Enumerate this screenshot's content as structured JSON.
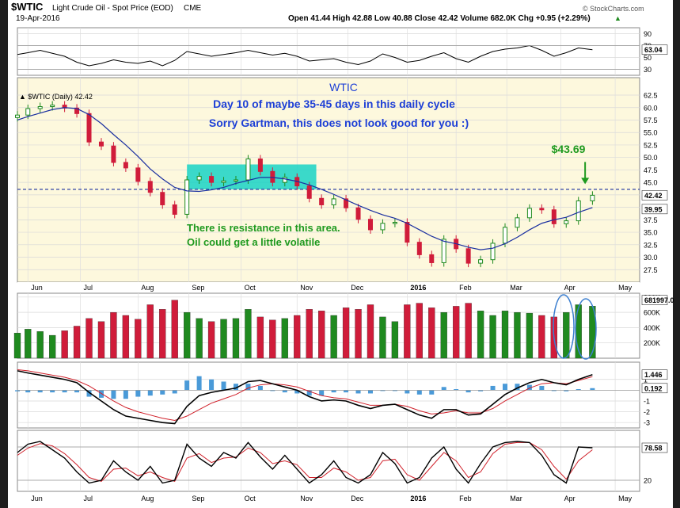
{
  "header": {
    "symbol": "$WTIC",
    "name": "Light Crude Oil - Spot Price (EOD)",
    "exchange": "CME",
    "date": "19-Apr-2016",
    "stats": "Open 41.44  High 42.88  Low 40.88  Close 42.42  Volume 682.0K  Chg +0.95 (+2.29%)",
    "stats_arrow": "▲",
    "brand": "© StockCharts.com"
  },
  "colors": {
    "up": "#1f8a1f",
    "down": "#d01c3a",
    "ma": "#1a2fa0",
    "signal": "#d0202a",
    "highlight": "#19d3c5",
    "annotation_blue": "#1d3fd6",
    "annotation_green": "#1f9a1f",
    "cycle_circle": "#3c7fd0"
  },
  "chart_data": {
    "type": "line",
    "x": [
      "2015-05-26",
      "2015-06-01",
      "2015-06-08",
      "2015-06-15",
      "2015-06-22",
      "2015-06-29",
      "2015-07-06",
      "2015-07-13",
      "2015-07-20",
      "2015-07-27",
      "2015-08-03",
      "2015-08-10",
      "2015-08-17",
      "2015-08-24",
      "2015-08-31",
      "2015-09-07",
      "2015-09-14",
      "2015-09-21",
      "2015-09-28",
      "2015-10-05",
      "2015-10-12",
      "2015-10-19",
      "2015-10-26",
      "2015-11-02",
      "2015-11-09",
      "2015-11-16",
      "2015-11-23",
      "2015-11-30",
      "2015-12-07",
      "2015-12-14",
      "2015-12-21",
      "2015-12-28",
      "2016-01-04",
      "2016-01-11",
      "2016-01-18",
      "2016-01-25",
      "2016-02-01",
      "2016-02-08",
      "2016-02-15",
      "2016-02-22",
      "2016-02-29",
      "2016-03-07",
      "2016-03-14",
      "2016-03-21",
      "2016-03-28",
      "2016-04-04",
      "2016-04-11",
      "2016-04-19"
    ],
    "series": [
      {
        "name": "$WTIC (Daily)",
        "panel": "price",
        "values": [
          58.5,
          59.8,
          60.2,
          60.5,
          59.9,
          58.8,
          53.1,
          52.3,
          49.0,
          47.9,
          45.2,
          43.0,
          40.5,
          38.6,
          45.5,
          46.2,
          45.0,
          45.3,
          45.5,
          49.7,
          47.2,
          45.0,
          46.0,
          44.3,
          41.8,
          40.5,
          41.7,
          39.9,
          37.6,
          35.5,
          36.8,
          37.0,
          33.0,
          30.5,
          28.9,
          33.6,
          31.7,
          28.8,
          29.5,
          32.8,
          36.0,
          37.9,
          39.8,
          39.5,
          36.7,
          37.3,
          41.3,
          42.42
        ]
      },
      {
        "name": "MA",
        "panel": "price",
        "values": [
          57.5,
          58.2,
          58.9,
          59.6,
          60.0,
          59.8,
          58.6,
          56.8,
          54.6,
          52.5,
          50.2,
          47.7,
          45.7,
          44.0,
          43.3,
          43.2,
          43.5,
          44.0,
          44.8,
          45.4,
          46.0,
          46.0,
          45.7,
          45.2,
          44.5,
          43.6,
          42.6,
          41.5,
          40.4,
          39.4,
          38.5,
          37.8,
          36.8,
          35.5,
          34.2,
          33.2,
          32.7,
          32.0,
          31.5,
          31.8,
          32.7,
          34.0,
          35.5,
          36.8,
          37.5,
          38.0,
          39.0,
          39.95
        ]
      },
      {
        "name": "RSI",
        "panel": "rsi",
        "values": [
          55,
          58,
          62,
          57,
          52,
          42,
          36,
          40,
          46,
          42,
          40,
          44,
          36,
          45,
          60,
          56,
          52,
          55,
          58,
          62,
          58,
          54,
          57,
          52,
          44,
          46,
          48,
          42,
          38,
          44,
          56,
          50,
          42,
          45,
          52,
          58,
          48,
          42,
          52,
          60,
          64,
          66,
          70,
          62,
          52,
          58,
          66,
          63.04
        ]
      },
      {
        "name": "Volume",
        "panel": "volume",
        "values": [
          330,
          380,
          350,
          300,
          360,
          420,
          520,
          480,
          600,
          560,
          510,
          700,
          640,
          760,
          600,
          520,
          480,
          510,
          520,
          640,
          540,
          500,
          520,
          560,
          640,
          620,
          560,
          660,
          640,
          700,
          540,
          480,
          700,
          720,
          660,
          600,
          680,
          720,
          620,
          560,
          620,
          600,
          590,
          560,
          540,
          600,
          700,
          682
        ]
      },
      {
        "name": "MACD",
        "panel": "macd",
        "values": [
          1.8,
          1.6,
          1.4,
          1.2,
          1.0,
          0.7,
          -0.2,
          -1.0,
          -1.8,
          -2.4,
          -2.6,
          -2.8,
          -3.0,
          -3.1,
          -1.5,
          -0.5,
          -0.2,
          0.0,
          0.2,
          0.8,
          0.9,
          0.6,
          0.3,
          0.0,
          -0.6,
          -1.0,
          -0.9,
          -1.0,
          -1.4,
          -1.7,
          -1.4,
          -1.3,
          -1.8,
          -2.3,
          -2.6,
          -1.8,
          -1.8,
          -2.3,
          -2.2,
          -1.3,
          -0.4,
          0.2,
          0.7,
          1.0,
          0.7,
          0.5,
          1.0,
          1.446
        ]
      },
      {
        "name": "MACD signal",
        "panel": "macd",
        "values": [
          1.9,
          1.8,
          1.6,
          1.4,
          1.2,
          0.9,
          0.4,
          -0.3,
          -1.0,
          -1.6,
          -2.0,
          -2.3,
          -2.6,
          -2.8,
          -2.4,
          -1.8,
          -1.2,
          -0.8,
          -0.4,
          0.2,
          0.5,
          0.6,
          0.5,
          0.3,
          -0.1,
          -0.5,
          -0.7,
          -0.8,
          -1.1,
          -1.4,
          -1.4,
          -1.3,
          -1.5,
          -1.9,
          -2.2,
          -2.1,
          -1.9,
          -2.1,
          -2.1,
          -1.7,
          -1.0,
          -0.4,
          0.2,
          0.6,
          0.7,
          0.6,
          0.9,
          1.254
        ]
      },
      {
        "name": "MACD histogram",
        "panel": "macd",
        "values": [
          -0.1,
          -0.2,
          -0.2,
          -0.2,
          -0.2,
          -0.2,
          -0.6,
          -0.7,
          -0.8,
          -0.8,
          -0.6,
          -0.5,
          -0.4,
          -0.3,
          0.9,
          1.3,
          1.0,
          0.8,
          0.6,
          0.6,
          0.4,
          0.0,
          -0.2,
          -0.3,
          -0.5,
          -0.5,
          -0.2,
          -0.2,
          -0.3,
          -0.3,
          0.0,
          0.0,
          -0.3,
          -0.4,
          -0.4,
          0.3,
          0.1,
          -0.2,
          -0.1,
          0.4,
          0.6,
          0.6,
          0.5,
          0.4,
          0.0,
          -0.1,
          0.1,
          0.192
        ]
      },
      {
        "name": "Stochastic %K",
        "panel": "stoch",
        "values": [
          70,
          85,
          90,
          75,
          60,
          35,
          15,
          20,
          55,
          35,
          20,
          45,
          15,
          20,
          85,
          60,
          45,
          70,
          60,
          88,
          62,
          40,
          65,
          40,
          15,
          30,
          55,
          25,
          15,
          30,
          70,
          50,
          15,
          25,
          60,
          80,
          40,
          15,
          50,
          80,
          88,
          90,
          88,
          65,
          30,
          15,
          80,
          78.58
        ]
      },
      {
        "name": "Stochastic %D",
        "panel": "stoch",
        "values": [
          65,
          78,
          86,
          82,
          68,
          48,
          25,
          18,
          40,
          42,
          28,
          35,
          25,
          18,
          60,
          68,
          52,
          60,
          62,
          78,
          70,
          50,
          55,
          48,
          25,
          25,
          42,
          35,
          20,
          25,
          55,
          58,
          30,
          20,
          45,
          70,
          55,
          25,
          35,
          68,
          85,
          88,
          88,
          75,
          45,
          22,
          55,
          75.02
        ]
      }
    ],
    "panels": {
      "price": {
        "ylim": [
          25,
          66
        ],
        "yticks": [
          27.5,
          30.0,
          32.5,
          35.0,
          37.5,
          40.0,
          42.5,
          45.0,
          47.5,
          50.0,
          52.5,
          55.0,
          57.5,
          60.0,
          62.5
        ],
        "ylabels": [
          "27.5",
          "30.0",
          "32.5",
          "35.0",
          "37.5",
          "40.0",
          "42.5",
          "45.0",
          "47.5",
          "50.0",
          "52.5",
          "55.0",
          "57.5",
          "60.0",
          "62.5"
        ],
        "legend": "▲ $WTIC (Daily) 42.42",
        "last_close": "42.42",
        "ma_last": "39.95",
        "resistance": 43.6
      },
      "rsi": {
        "ylim": [
          20,
          100
        ],
        "yticks": [
          90,
          70,
          50,
          30
        ],
        "ylabels": [
          "90",
          "70",
          "50",
          "30"
        ],
        "last": "63.04"
      },
      "volume": {
        "ylim": [
          0,
          850
        ],
        "yticks": [
          800,
          600,
          400,
          200
        ],
        "ylabels": [
          "800K",
          "600K",
          "400K",
          "200K"
        ],
        "last": "681997.0"
      },
      "macd": {
        "ylim": [
          -3.5,
          2.6
        ],
        "yticks": [
          1,
          -1,
          -2,
          -3
        ],
        "ylabels": [
          "1",
          "-1",
          "-2",
          "-3"
        ],
        "last": "1.446",
        "hist_last": "0.192"
      },
      "stoch": {
        "ylim": [
          0,
          110
        ],
        "yticks": [
          80,
          20
        ],
        "ylabels": [
          "80",
          "20"
        ],
        "last": "78.58"
      }
    },
    "xaxis": {
      "ticks": [
        "2015-06-01",
        "2015-07-01",
        "2015-08-03",
        "2015-09-01",
        "2015-10-01",
        "2015-11-02",
        "2015-12-01",
        "2016-01-04",
        "2016-02-01",
        "2016-03-01",
        "2016-04-01",
        "2016-05-02"
      ],
      "labels": [
        "Jun",
        "Jul",
        "Aug",
        "Sep",
        "Oct",
        "Nov",
        "Dec",
        "2016",
        "Feb",
        "Mar",
        "Apr",
        "May"
      ],
      "range": [
        "2015-05-26",
        "2016-05-16"
      ]
    },
    "annotations": {
      "title": "WTIC",
      "line1": "Day 10 of maybe 35-45 days in this daily cycle",
      "line2": "Sorry Gartman, this does not look good for you  :)",
      "resistance1": "There is resistance in this area.",
      "resistance2": "Oil could get a little volatile",
      "peak_label": "$43.69",
      "peak_value": 43.69,
      "peak_date": "2016-04-13",
      "box": {
        "x": [
          "2015-08-31",
          "2015-11-13"
        ],
        "y": [
          43.6,
          48.6
        ]
      }
    }
  }
}
